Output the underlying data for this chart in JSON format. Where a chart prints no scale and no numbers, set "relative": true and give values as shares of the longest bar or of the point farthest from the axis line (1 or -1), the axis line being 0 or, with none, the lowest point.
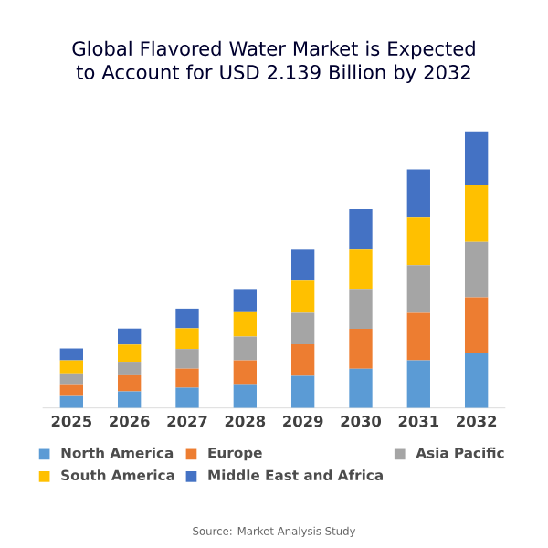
{
  "chart_data": {
    "type": "bar",
    "title": "Global Flavored Water Market is Expected to Account for USD 2.139 Billion by 2032",
    "categories": [
      "2025",
      "2026",
      "2027",
      "2028",
      "2029",
      "2030",
      "2031",
      "2032"
    ],
    "stacked": true,
    "relative": true,
    "legend": "bottom",
    "series": [
      {
        "name": "North America",
        "color": "#5b9bd5",
        "values": [
          0.043,
          0.06,
          0.073,
          0.086,
          0.116,
          0.142,
          0.172,
          0.2
        ]
      },
      {
        "name": "Europe",
        "color": "#ed7d31",
        "values": [
          0.043,
          0.058,
          0.069,
          0.086,
          0.114,
          0.144,
          0.172,
          0.2
        ]
      },
      {
        "name": "Asia Pacific",
        "color": "#a5a5a5",
        "values": [
          0.039,
          0.049,
          0.071,
          0.086,
          0.114,
          0.144,
          0.172,
          0.2
        ]
      },
      {
        "name": "South America",
        "color": "#ffc000",
        "values": [
          0.047,
          0.062,
          0.075,
          0.088,
          0.116,
          0.142,
          0.172,
          0.204
        ]
      },
      {
        "name": "Middle East and Africa",
        "color": "#4472c4",
        "values": [
          0.043,
          0.058,
          0.071,
          0.084,
          0.112,
          0.146,
          0.174,
          0.196
        ]
      }
    ],
    "annotations": [
      "Source: Market Analysis Study"
    ]
  }
}
